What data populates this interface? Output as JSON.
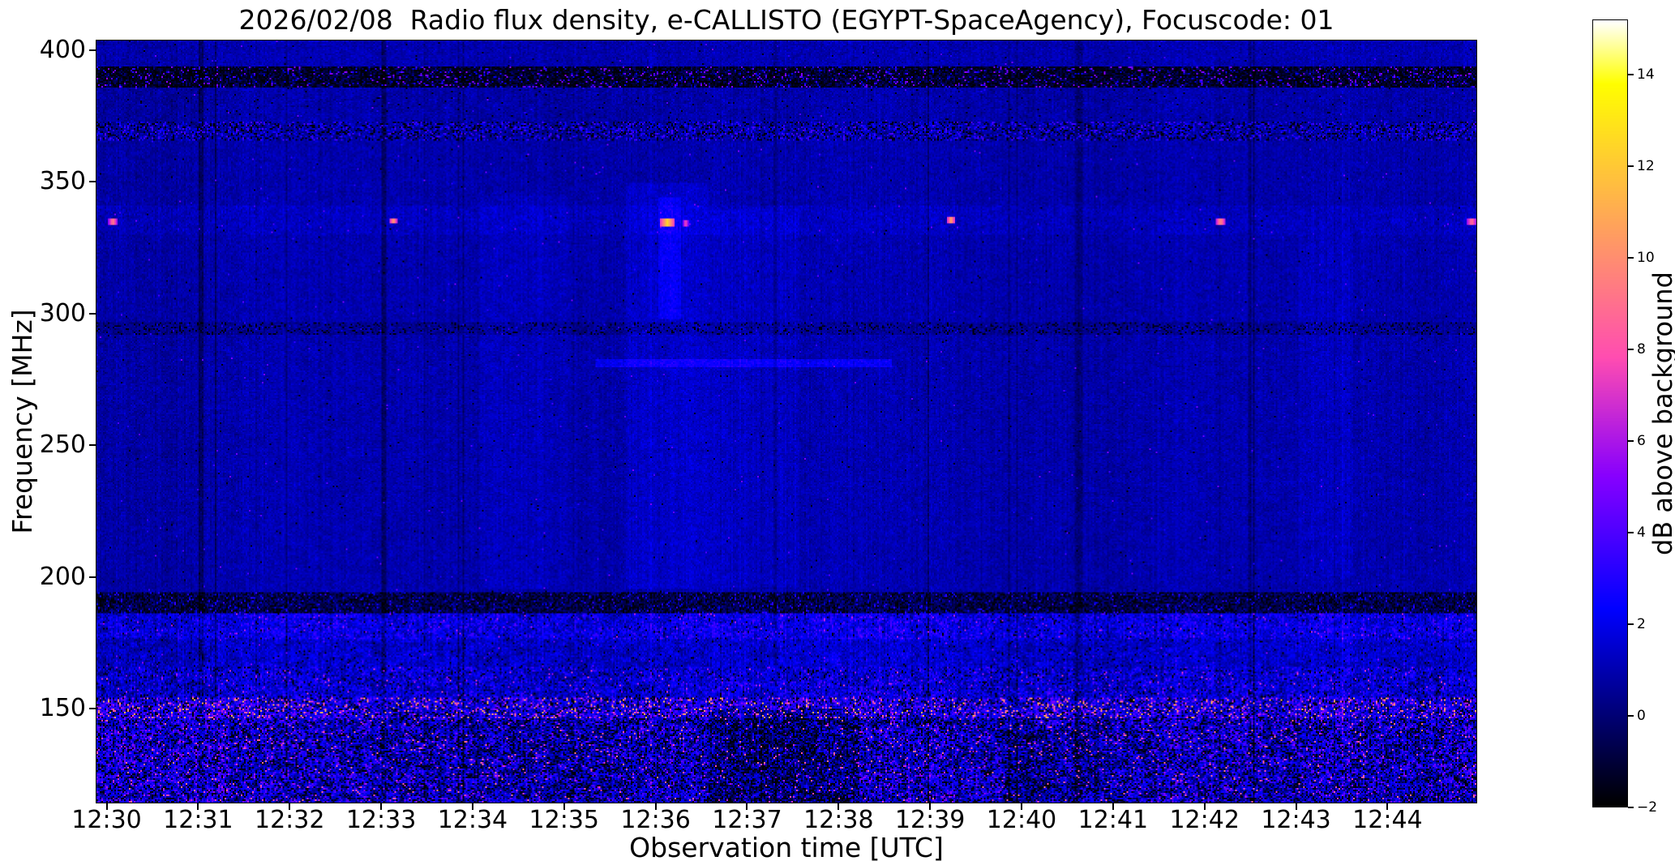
{
  "chart_data": {
    "type": "heatmap",
    "subtype": "radio-spectrogram",
    "title": "2026/02/08  Radio flux density, e-CALLISTO (EGYPT-SpaceAgency), Focuscode: 01",
    "xlabel": "Observation time [UTC]",
    "ylabel": "Frequency [MHz]",
    "colorbar_label": "dB above background",
    "colormap": "gnuplot2",
    "grid": false,
    "x_range_minutes": [
      0,
      15.1
    ],
    "x_tick_offset_minutes": 0.12,
    "x_ticks": [
      "12:30",
      "12:31",
      "12:32",
      "12:33",
      "12:34",
      "12:35",
      "12:36",
      "12:37",
      "12:38",
      "12:39",
      "12:40",
      "12:41",
      "12:42",
      "12:43",
      "12:44"
    ],
    "y_range_mhz": [
      114,
      404
    ],
    "y_ticks": [
      {
        "v": 400,
        "label": "400"
      },
      {
        "v": 350,
        "label": "350"
      },
      {
        "v": 300,
        "label": "300"
      },
      {
        "v": 250,
        "label": "250"
      },
      {
        "v": 200,
        "label": "200"
      },
      {
        "v": 150,
        "label": "150"
      }
    ],
    "value_range_db": [
      -2,
      15.2
    ],
    "colorbar_ticks": [
      {
        "v": -2,
        "label": "−2"
      },
      {
        "v": 0,
        "label": "0"
      },
      {
        "v": 2,
        "label": "2"
      },
      {
        "v": 4,
        "label": "4"
      },
      {
        "v": 6,
        "label": "6"
      },
      {
        "v": 8,
        "label": "8"
      },
      {
        "v": 10,
        "label": "10"
      },
      {
        "v": 12,
        "label": "12"
      },
      {
        "v": 14,
        "label": "14"
      }
    ],
    "background_level_db": 0.9,
    "noise": {
      "seed": 20260208,
      "pixel_sigma_scale": 1.0,
      "column_white_sigma": 0.5,
      "column_smooth_amp": 0.3
    },
    "bands": [
      {
        "name": "top-edge",
        "f0": 394,
        "f1": 404,
        "base": 0.95,
        "sigma": 0.3,
        "speckle_p": 0.002,
        "speckle_lo": 2.5,
        "speckle_hi": 5.0,
        "dropout_p": 0.004,
        "col_mod": 0.5,
        "block_sigma": 0.15
      },
      {
        "name": "rfi-390",
        "f0": 386,
        "f1": 394,
        "base": -1.0,
        "sigma": 0.6,
        "speckle_p": 0.1,
        "speckle_lo": 1.5,
        "speckle_hi": 5.5,
        "dropout_p": 0.3,
        "col_mod": 0.6,
        "block_sigma": 0.3
      },
      {
        "name": "band-373-386",
        "f0": 373,
        "f1": 386,
        "base": 0.8,
        "sigma": 0.3,
        "speckle_p": 0.002,
        "speckle_lo": 2.5,
        "speckle_hi": 5.0,
        "dropout_p": 0.01,
        "col_mod": 0.6,
        "block_sigma": 0.2
      },
      {
        "name": "rfi-370",
        "f0": 366,
        "f1": 373,
        "base": 0.7,
        "sigma": 0.45,
        "speckle_p": 0.18,
        "speckle_lo": 2.0,
        "speckle_hi": 4.0,
        "dropout_p": 0.16,
        "col_mod": 0.5,
        "block_sigma": 0.2
      },
      {
        "name": "band-341-366",
        "f0": 341,
        "f1": 366,
        "base": 0.85,
        "sigma": 0.28,
        "speckle_p": 0.0015,
        "speckle_lo": 2.5,
        "speckle_hi": 5.0,
        "dropout_p": 0.002,
        "col_mod": 0.55,
        "block_sigma": 0.15
      },
      {
        "name": "line-335",
        "f0": 330,
        "f1": 341,
        "base": 1.15,
        "sigma": 0.32,
        "speckle_p": 0.003,
        "speckle_lo": 2.5,
        "speckle_hi": 5.0,
        "dropout_p": 0.002,
        "col_mod": 0.55,
        "block_sigma": 0.15
      },
      {
        "name": "band-297-330",
        "f0": 297,
        "f1": 330,
        "base": 0.9,
        "sigma": 0.28,
        "speckle_p": 0.0015,
        "speckle_lo": 2.5,
        "speckle_hi": 5.0,
        "dropout_p": 0.002,
        "col_mod": 0.55,
        "block_sigma": 0.15
      },
      {
        "name": "rfi-295",
        "f0": 292,
        "f1": 297,
        "base": 0.45,
        "sigma": 0.35,
        "speckle_p": 0.01,
        "speckle_lo": 2.0,
        "speckle_hi": 3.5,
        "dropout_p": 0.12,
        "col_mod": 0.45,
        "block_sigma": 0.2
      },
      {
        "name": "band-194-292",
        "f0": 194,
        "f1": 292,
        "base": 0.88,
        "sigma": 0.28,
        "speckle_p": 0.0015,
        "speckle_lo": 2.5,
        "speckle_hi": 5.0,
        "dropout_p": 0.002,
        "col_mod": 0.6,
        "block_sigma": 0.18
      },
      {
        "name": "rfi-190",
        "f0": 186,
        "f1": 194,
        "base": -0.55,
        "sigma": 0.6,
        "speckle_p": 0.06,
        "speckle_lo": 1.5,
        "speckle_hi": 3.5,
        "dropout_p": 0.22,
        "col_mod": 0.5,
        "block_sigma": 0.3
      },
      {
        "name": "band-176-186",
        "f0": 176,
        "f1": 186,
        "base": 1.9,
        "sigma": 0.75,
        "speckle_p": 0.015,
        "speckle_lo": 3.5,
        "speckle_hi": 6.5,
        "dropout_p": 0.02,
        "col_mod": 1.3,
        "block_sigma": 0.5
      },
      {
        "name": "band-166-176",
        "f0": 166,
        "f1": 176,
        "base": 1.35,
        "sigma": 0.55,
        "speckle_p": 0.004,
        "speckle_lo": 3.0,
        "speckle_hi": 5.5,
        "dropout_p": 0.02,
        "col_mod": 1.0,
        "block_sigma": 0.45
      },
      {
        "name": "band-154-166",
        "f0": 154,
        "f1": 166,
        "base": 1.55,
        "sigma": 0.85,
        "speckle_p": 0.02,
        "speckle_lo": 3.5,
        "speckle_hi": 7.5,
        "dropout_p": 0.05,
        "col_mod": 1.2,
        "block_sigma": 0.6
      },
      {
        "name": "rfi-150",
        "f0": 146,
        "f1": 154,
        "base": 2.2,
        "sigma": 1.2,
        "speckle_p": 0.12,
        "speckle_lo": 4.5,
        "speckle_hi": 11.5,
        "dropout_p": 0.12,
        "col_mod": 1.4,
        "block_sigma": 0.8
      },
      {
        "name": "low-noise",
        "f0": 114,
        "f1": 146,
        "base": 1.45,
        "sigma": 1.3,
        "speckle_p": 0.03,
        "speckle_lo": 4.5,
        "speckle_hi": 9.5,
        "dropout_p": 0.16,
        "col_mod": 1.7,
        "block_sigma": 1.0
      }
    ],
    "patches": [
      {
        "name": "bottom-left-bright",
        "t0": 0.0,
        "t1": 1.45,
        "f0": 114,
        "f1": 152,
        "add": 0.9
      },
      {
        "name": "bottom-dark-gap",
        "t0": 6.7,
        "t1": 8.35,
        "f0": 114,
        "f1": 150,
        "add": -1.5
      },
      {
        "name": "bottom-dark-2",
        "t0": 9.95,
        "t1": 10.55,
        "f0": 114,
        "f1": 142,
        "add": -0.7
      },
      {
        "name": "haze-col-1",
        "t0": 4.2,
        "t1": 5.2,
        "f0": 195,
        "f1": 345,
        "add": 0.3
      },
      {
        "name": "haze-col-2",
        "t0": 5.8,
        "t1": 6.7,
        "f0": 195,
        "f1": 350,
        "add": 0.5
      },
      {
        "name": "haze-col-3",
        "t0": 6.7,
        "t1": 7.7,
        "f0": 196,
        "f1": 340,
        "add": 0.28
      },
      {
        "name": "haze-col-4",
        "t0": 13.15,
        "t1": 13.75,
        "f0": 200,
        "f1": 330,
        "add": 0.22
      },
      {
        "name": "vertical-smear-1236",
        "t0": 6.15,
        "t1": 6.4,
        "f0": 298,
        "f1": 344,
        "add": 0.9
      },
      {
        "name": "hline-280mhz",
        "t0": 5.45,
        "t1": 8.7,
        "f0": 279.5,
        "f1": 282.5,
        "add": 1.25
      }
    ],
    "dark_columns": [
      {
        "t": 1.14,
        "w": 0.05,
        "add": -1.2
      },
      {
        "t": 1.3,
        "w": 0.03,
        "add": -0.9
      },
      {
        "t": 3.14,
        "w": 0.05,
        "add": -1.1
      },
      {
        "t": 7.42,
        "w": 0.03,
        "add": -0.7
      },
      {
        "t": 10.76,
        "w": 0.05,
        "add": -0.7
      },
      {
        "t": 12.62,
        "w": 0.03,
        "add": -0.8
      }
    ],
    "events": [
      {
        "name": "burst-1230",
        "t": 0.18,
        "f": 335.0,
        "w": 0.1,
        "h": 2.2,
        "v": 9.5
      },
      {
        "name": "burst-1233",
        "t": 3.25,
        "f": 335.5,
        "w": 0.09,
        "h": 2.0,
        "v": 10.5
      },
      {
        "name": "burst-1236a",
        "t": 6.25,
        "f": 334.5,
        "w": 0.16,
        "h": 3.0,
        "v": 12.5
      },
      {
        "name": "burst-1236b",
        "t": 6.45,
        "f": 334.5,
        "w": 0.06,
        "h": 2.0,
        "v": 8.0
      },
      {
        "name": "burst-1239",
        "t": 9.35,
        "f": 335.5,
        "w": 0.1,
        "h": 2.2,
        "v": 10.5
      },
      {
        "name": "burst-1242",
        "t": 12.3,
        "f": 335.0,
        "w": 0.11,
        "h": 2.2,
        "v": 10.0
      },
      {
        "name": "burst-1244",
        "t": 15.05,
        "f": 335.0,
        "w": 0.12,
        "h": 2.2,
        "v": 9.0
      }
    ]
  }
}
